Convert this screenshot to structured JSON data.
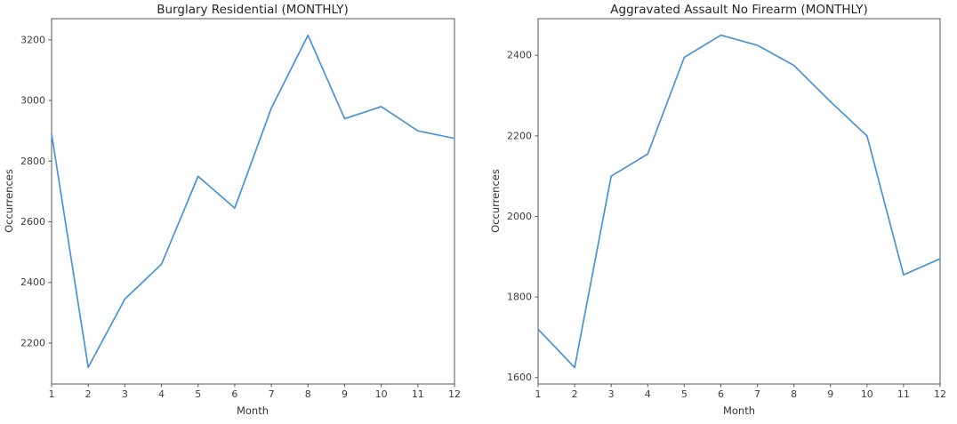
{
  "figure": {
    "background_color": "#ffffff",
    "line_color": "#4a92d4",
    "frame_color": "#555555",
    "tick_color": "#555555",
    "text_color": "#2d2d2d"
  },
  "chart_data": [
    {
      "type": "line",
      "title": "Burglary Residential (MONTHLY)",
      "xlabel": "Month",
      "ylabel": "Occurrences",
      "x": [
        1,
        2,
        3,
        4,
        5,
        6,
        7,
        8,
        9,
        10,
        11,
        12
      ],
      "series": [
        {
          "name": "Burglary Residential",
          "values": [
            2890,
            2120,
            2345,
            2460,
            2750,
            2645,
            2975,
            3215,
            2940,
            2980,
            2900,
            2875
          ]
        }
      ],
      "xlim": [
        1,
        12
      ],
      "ylim": [
        2065,
        3270
      ],
      "xticks": [
        1,
        2,
        3,
        4,
        5,
        6,
        7,
        8,
        9,
        10,
        11,
        12
      ],
      "yticks": [
        2200,
        2400,
        2600,
        2800,
        3000,
        3200
      ],
      "grid": false,
      "legend": null
    },
    {
      "type": "line",
      "title": "Aggravated Assault No Firearm (MONTHLY)",
      "xlabel": "Month",
      "ylabel": "Occurrences",
      "x": [
        1,
        2,
        3,
        4,
        5,
        6,
        7,
        8,
        9,
        10,
        11,
        12
      ],
      "series": [
        {
          "name": "Aggravated Assault No Firearm",
          "values": [
            1720,
            1625,
            2100,
            2155,
            2395,
            2450,
            2425,
            2375,
            2285,
            2200,
            1855,
            1895
          ]
        }
      ],
      "xlim": [
        1,
        12
      ],
      "ylim": [
        1584,
        2491
      ],
      "xticks": [
        1,
        2,
        3,
        4,
        5,
        6,
        7,
        8,
        9,
        10,
        11,
        12
      ],
      "yticks": [
        1600,
        1800,
        2000,
        2200,
        2400
      ],
      "grid": false,
      "legend": null
    }
  ]
}
